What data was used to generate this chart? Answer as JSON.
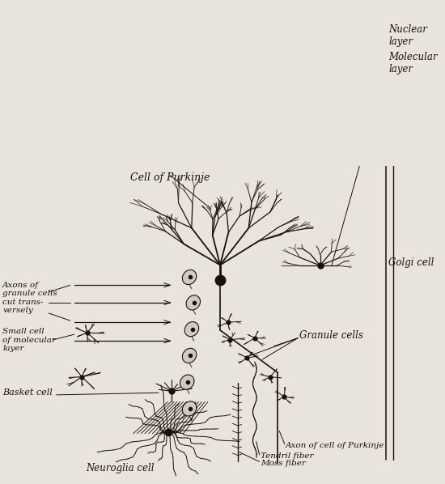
{
  "background_color": "#e8e4dc",
  "line_color": "#1a1008",
  "labels": {
    "purkinje": "Cell of Purkinje",
    "molecular_layer": "Molecular\nlayer",
    "golgi": "Golgi cell",
    "nuclear_layer": "Nuclear\nlayer",
    "axons_granule": "Axons of\ngranule cells\ncut trans-\nversely",
    "granule_cells": "Granule cells",
    "small_cell": "Small cell\nof molecular\nlayer",
    "basket_cell": "Basket cell",
    "neuroglia": "Neuroglia cell",
    "axon_purkinje": "Axon of cell of Purkinje",
    "tendril": "Tendril fiber",
    "moss": "Moss fiber"
  },
  "figsize": [
    5.5,
    5.98
  ],
  "dpi": 100
}
